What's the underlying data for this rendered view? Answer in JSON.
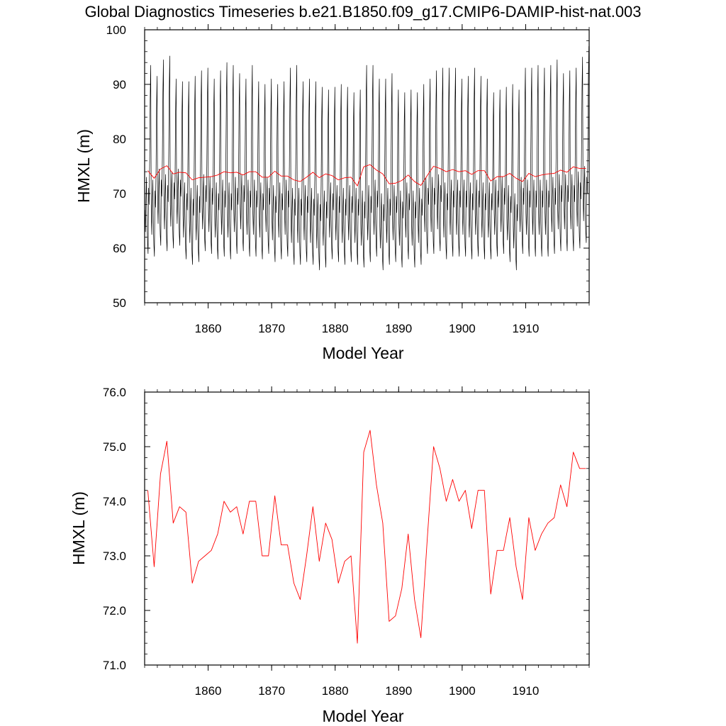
{
  "title": "Global Diagnostics Timeseries b.e21.B1850.f09_g17.CMIP6-DAMIP-hist-nat.003",
  "colors": {
    "monthly": "#000000",
    "annual": "#ff0000",
    "axis": "#000000"
  },
  "chart_data": [
    {
      "type": "line",
      "xlabel": "Model Year",
      "ylabel": "HMXL (m)",
      "xlim": [
        1850,
        1920
      ],
      "ylim": [
        50,
        100
      ],
      "x_ticks": [
        1860,
        1870,
        1880,
        1890,
        1900,
        1910
      ],
      "x_tick_labels": [
        "1860",
        "1870",
        "1880",
        "1890",
        "1900",
        "1910"
      ],
      "y_ticks": [
        50,
        60,
        70,
        80,
        90,
        100
      ],
      "y_tick_labels": [
        "50",
        "60",
        "70",
        "80",
        "90",
        "100"
      ],
      "series": [
        {
          "color": "#000000",
          "resolution": "monthly",
          "seasonal_cycle_peaks_m": [
            93.5,
            91.5,
            94.5,
            95.2,
            91.0,
            90.5,
            90.5,
            91.5,
            92.5,
            93.0,
            91.0,
            92.5,
            94.0,
            93.5,
            92.0,
            91.0,
            93.5,
            90.5,
            90.0,
            91.0,
            90.0,
            90.5,
            93.0,
            93.5,
            90.5,
            91.0,
            90.5,
            89.5,
            89.0,
            89.5,
            90.0,
            89.5,
            88.5,
            89.0,
            93.5,
            93.5,
            91.0,
            91.0,
            92.0,
            89.0,
            88.5,
            89.0,
            88.5,
            90.0,
            91.0,
            92.5,
            93.0,
            93.0,
            93.0,
            91.0,
            91.5,
            93.0,
            91.5,
            91.0,
            88.5,
            89.0,
            89.5,
            90.0,
            89.0,
            93.0,
            93.0,
            93.5,
            93.0,
            93.5,
            94.5,
            92.0,
            92.5,
            93.0,
            95.0,
            97.0
          ],
          "seasonal_cycle_troughs_m": [
            59.0,
            58.5,
            60.5,
            59.5,
            60.0,
            60.5,
            58.0,
            57.0,
            57.5,
            59.5,
            59.0,
            58.0,
            58.5,
            58.0,
            59.0,
            59.5,
            58.5,
            58.5,
            58.0,
            59.0,
            57.5,
            58.0,
            58.5,
            57.0,
            57.0,
            57.5,
            57.0,
            56.0,
            56.5,
            58.0,
            57.5,
            57.0,
            57.5,
            57.0,
            56.5,
            57.5,
            58.5,
            56.0,
            57.0,
            57.5,
            56.5,
            58.0,
            56.5,
            57.0,
            59.0,
            59.0,
            59.5,
            58.0,
            58.5,
            58.5,
            58.5,
            58.0,
            58.5,
            58.0,
            58.0,
            58.5,
            59.0,
            57.5,
            56.0,
            59.0,
            58.5,
            58.5,
            58.5,
            58.5,
            59.0,
            59.5,
            59.5,
            59.5,
            60.0,
            61.0
          ]
        },
        {
          "color": "#ff0000",
          "resolution": "annual",
          "x": [
            1850.5,
            1851.5,
            1852.5,
            1853.5,
            1854.5,
            1855.5,
            1856.5,
            1857.5,
            1858.5,
            1859.5,
            1860.5,
            1861.5,
            1862.5,
            1863.5,
            1864.5,
            1865.5,
            1866.5,
            1867.5,
            1868.5,
            1869.5,
            1870.5,
            1871.5,
            1872.5,
            1873.5,
            1874.5,
            1875.5,
            1876.5,
            1877.5,
            1878.5,
            1879.5,
            1880.5,
            1881.5,
            1882.5,
            1883.5,
            1884.5,
            1885.5,
            1886.5,
            1887.5,
            1888.5,
            1889.5,
            1890.5,
            1891.5,
            1892.5,
            1893.5,
            1894.5,
            1895.5,
            1896.5,
            1897.5,
            1898.5,
            1899.5,
            1900.5,
            1901.5,
            1902.5,
            1903.5,
            1904.5,
            1905.5,
            1906.5,
            1907.5,
            1908.5,
            1909.5,
            1910.5,
            1911.5,
            1912.5,
            1913.5,
            1914.5,
            1915.5,
            1916.5,
            1917.5,
            1918.5,
            1919.5
          ],
          "values": [
            74.2,
            72.8,
            74.5,
            75.1,
            73.6,
            73.9,
            73.8,
            72.5,
            72.9,
            73.0,
            73.1,
            73.4,
            74.0,
            73.8,
            73.9,
            73.4,
            74.0,
            74.0,
            73.0,
            73.0,
            74.1,
            73.2,
            73.2,
            72.5,
            72.2,
            73.0,
            73.9,
            72.9,
            73.6,
            73.3,
            72.5,
            72.9,
            73.0,
            71.4,
            74.9,
            75.3,
            74.3,
            73.6,
            71.8,
            71.9,
            72.4,
            73.4,
            72.2,
            71.5,
            73.3,
            75.0,
            74.6,
            74.0,
            74.4,
            74.0,
            74.2,
            73.5,
            74.2,
            74.2,
            72.3,
            73.1,
            73.1,
            73.7,
            72.8,
            72.2,
            73.7,
            73.1,
            73.4,
            73.6,
            73.7,
            74.3,
            73.9,
            74.9,
            74.6,
            74.6
          ]
        }
      ]
    },
    {
      "type": "line",
      "xlabel": "Model Year",
      "ylabel": "HMXL (m)",
      "xlim": [
        1850,
        1920
      ],
      "ylim": [
        71,
        76
      ],
      "x_ticks": [
        1860,
        1870,
        1880,
        1890,
        1900,
        1910
      ],
      "x_tick_labels": [
        "1860",
        "1870",
        "1880",
        "1890",
        "1900",
        "1910"
      ],
      "y_ticks": [
        71,
        72,
        73,
        74,
        75,
        76
      ],
      "y_tick_labels": [
        "71.0",
        "72.0",
        "73.0",
        "74.0",
        "75.0",
        "76.0"
      ],
      "series": [
        {
          "color": "#ff0000",
          "resolution": "annual",
          "x": [
            1850.5,
            1851.5,
            1852.5,
            1853.5,
            1854.5,
            1855.5,
            1856.5,
            1857.5,
            1858.5,
            1859.5,
            1860.5,
            1861.5,
            1862.5,
            1863.5,
            1864.5,
            1865.5,
            1866.5,
            1867.5,
            1868.5,
            1869.5,
            1870.5,
            1871.5,
            1872.5,
            1873.5,
            1874.5,
            1875.5,
            1876.5,
            1877.5,
            1878.5,
            1879.5,
            1880.5,
            1881.5,
            1882.5,
            1883.5,
            1884.5,
            1885.5,
            1886.5,
            1887.5,
            1888.5,
            1889.5,
            1890.5,
            1891.5,
            1892.5,
            1893.5,
            1894.5,
            1895.5,
            1896.5,
            1897.5,
            1898.5,
            1899.5,
            1900.5,
            1901.5,
            1902.5,
            1903.5,
            1904.5,
            1905.5,
            1906.5,
            1907.5,
            1908.5,
            1909.5,
            1910.5,
            1911.5,
            1912.5,
            1913.5,
            1914.5,
            1915.5,
            1916.5,
            1917.5,
            1918.5,
            1919.5
          ],
          "values": [
            74.2,
            72.8,
            74.5,
            75.1,
            73.6,
            73.9,
            73.8,
            72.5,
            72.9,
            73.0,
            73.1,
            73.4,
            74.0,
            73.8,
            73.9,
            73.4,
            74.0,
            74.0,
            73.0,
            73.0,
            74.1,
            73.2,
            73.2,
            72.5,
            72.2,
            73.0,
            73.9,
            72.9,
            73.6,
            73.3,
            72.5,
            72.9,
            73.0,
            71.4,
            74.9,
            75.3,
            74.3,
            73.6,
            71.8,
            71.9,
            72.4,
            73.4,
            72.2,
            71.5,
            73.3,
            75.0,
            74.6,
            74.0,
            74.4,
            74.0,
            74.2,
            73.5,
            74.2,
            74.2,
            72.3,
            73.1,
            73.1,
            73.7,
            72.8,
            72.2,
            73.7,
            73.1,
            73.4,
            73.6,
            73.7,
            74.3,
            73.9,
            74.9,
            74.6,
            74.6
          ]
        }
      ]
    }
  ]
}
